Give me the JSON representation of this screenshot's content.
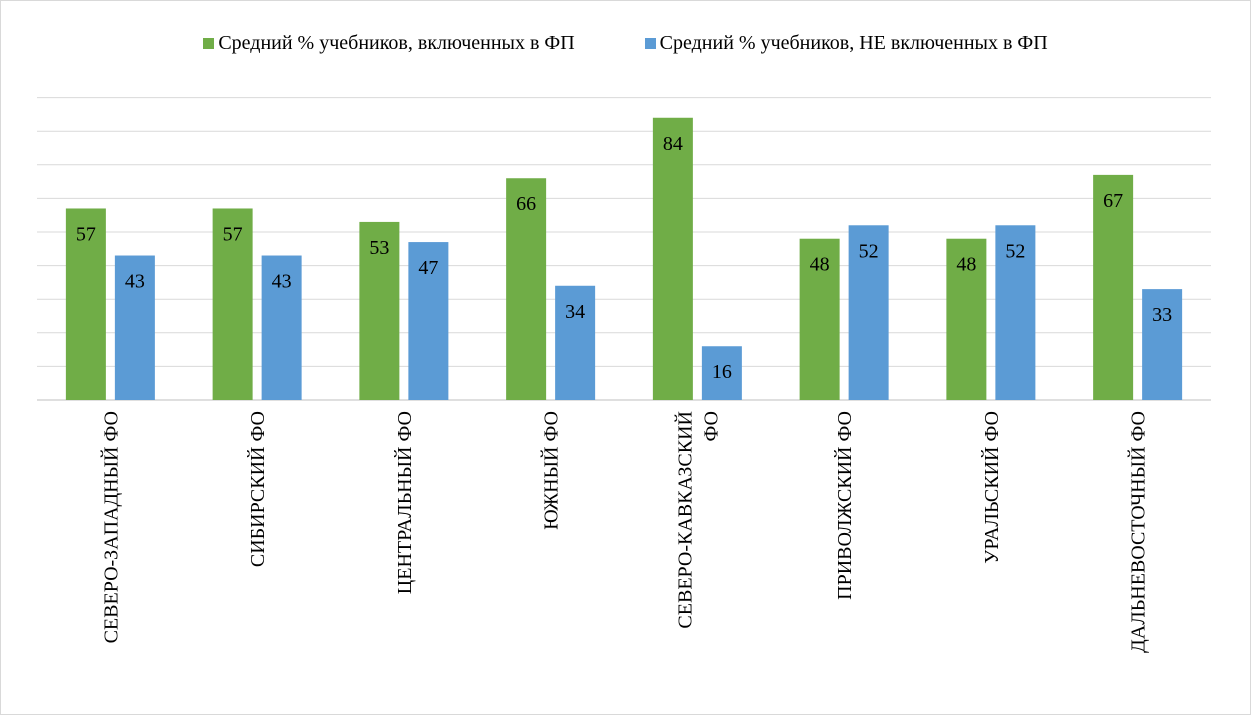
{
  "colors": {
    "series1": "#70ad47",
    "series2": "#5b9bd5",
    "grid": "#d9d9d9",
    "axis": "#bfbfbf"
  },
  "chart_data": {
    "type": "bar",
    "title": "",
    "xlabel": "",
    "ylabel": "",
    "ylim": [
      0,
      90
    ],
    "grid": true,
    "legend_position": "top",
    "categories": [
      [
        "СЕВЕРО-ЗАПАДНЫЙ ФО"
      ],
      [
        "СИБИРСКИЙ ФО"
      ],
      [
        "ЦЕНТРАЛЬНЫЙ ФО"
      ],
      [
        "ЮЖНЫЙ ФО"
      ],
      [
        "СЕВЕРО-КАВКАЗСКИЙ",
        "ФО"
      ],
      [
        "ПРИВОЛЖСКИЙ ФО"
      ],
      [
        "УРАЛЬСКИЙ ФО"
      ],
      [
        "ДАЛЬНЕВОСТОЧНЫЙ ФО"
      ]
    ],
    "series": [
      {
        "name": "Средний % учебников, включенных в ФП",
        "values": [
          57,
          57,
          53,
          66,
          84,
          48,
          48,
          67
        ]
      },
      {
        "name": "Средний % учебников, НЕ включенных в ФП",
        "values": [
          43,
          43,
          47,
          34,
          16,
          52,
          52,
          33
        ]
      }
    ]
  }
}
